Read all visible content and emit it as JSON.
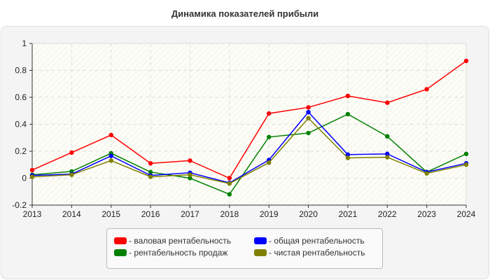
{
  "chart_data": {
    "type": "line",
    "title": "Динамика показателей прибыли",
    "x": [
      2013,
      2014,
      2015,
      2016,
      2017,
      2018,
      2019,
      2020,
      2021,
      2022,
      2023,
      2024
    ],
    "ylim": [
      -0.2,
      1
    ],
    "yticks": [
      "-0.2",
      "0",
      "0.2",
      "0.4",
      "0.6",
      "0.8",
      "1"
    ],
    "grid": true,
    "legend_placement": "bottom",
    "series": [
      {
        "name": "- валовая рентабельность",
        "color": "#ff0000",
        "values": [
          0.06,
          0.19,
          0.32,
          0.11,
          0.13,
          0.0,
          0.48,
          0.525,
          0.61,
          0.56,
          0.66,
          0.87
        ]
      },
      {
        "name": "- общая рентабельность",
        "color": "#0000ff",
        "values": [
          0.02,
          0.03,
          0.165,
          0.02,
          0.04,
          -0.035,
          0.135,
          0.49,
          0.175,
          0.18,
          0.045,
          0.11
        ]
      },
      {
        "name": "- рентабельность продаж",
        "color": "#008000",
        "values": [
          0.025,
          0.05,
          0.185,
          0.045,
          0.0,
          -0.12,
          0.305,
          0.335,
          0.475,
          0.31,
          0.045,
          0.18
        ]
      },
      {
        "name": "- чистая рентабельность",
        "color": "#808000",
        "values": [
          0.01,
          0.025,
          0.13,
          0.01,
          0.025,
          -0.04,
          0.115,
          0.445,
          0.15,
          0.155,
          0.035,
          0.1
        ]
      }
    ]
  }
}
